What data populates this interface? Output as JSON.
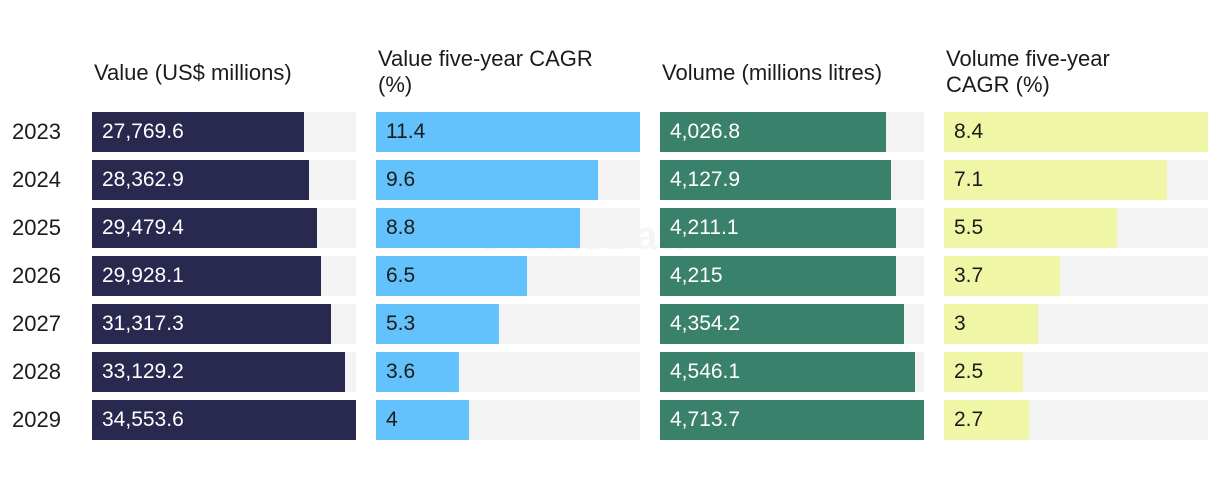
{
  "chart_data": {
    "type": "bar",
    "watermark": "GlobalData",
    "categories": [
      "2023",
      "2024",
      "2025",
      "2026",
      "2027",
      "2028",
      "2029"
    ],
    "series": [
      {
        "name": "Value (US$ millions)",
        "values": [
          27769.6,
          28362.9,
          29479.4,
          29928.1,
          31317.3,
          33129.2,
          34553.6
        ],
        "labels": [
          "27,769.6",
          "28,362.9",
          "29,479.4",
          "29,928.1",
          "31,317.3",
          "33,129.2",
          "34,553.6"
        ],
        "color": "#29294f",
        "text_color": "#ffffff"
      },
      {
        "name": "Value five-year CAGR\n(%)",
        "values": [
          11.4,
          9.6,
          8.8,
          6.5,
          5.3,
          3.6,
          4
        ],
        "labels": [
          "11.4",
          "9.6",
          "8.8",
          "6.5",
          "5.3",
          "3.6",
          "4"
        ],
        "color": "#63c1fb",
        "text_color": "#1b1b1b"
      },
      {
        "name": "Volume (millions litres)",
        "values": [
          4026.8,
          4127.9,
          4211.1,
          4215,
          4354.2,
          4546.1,
          4713.7
        ],
        "labels": [
          "4,026.8",
          "4,127.9",
          "4,211.1",
          "4,215",
          "4,354.2",
          "4,546.1",
          "4,713.7"
        ],
        "color": "#3a816b",
        "text_color": "#ffffff"
      },
      {
        "name": "Volume five-year\nCAGR (%)",
        "values": [
          8.4,
          7.1,
          5.5,
          3.7,
          3,
          2.5,
          2.7
        ],
        "labels": [
          "8.4",
          "7.1",
          "5.5",
          "3.7",
          "3",
          "2.5",
          "2.7"
        ],
        "color": "#eff7a6",
        "text_color": "#1b1b1b"
      }
    ]
  }
}
